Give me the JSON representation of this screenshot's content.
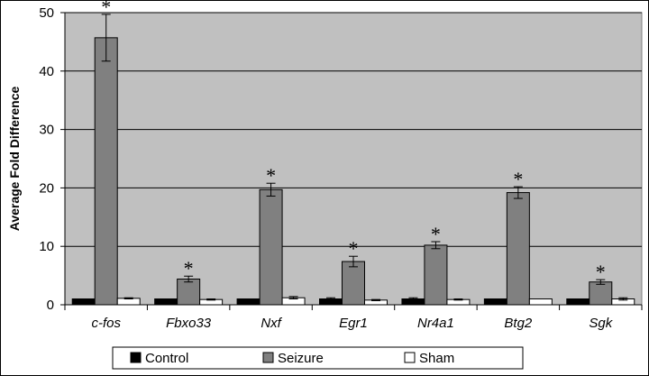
{
  "chart_data": {
    "type": "bar",
    "title": "",
    "xlabel": "",
    "ylabel": "Average Fold Difference",
    "ylim": [
      0,
      50
    ],
    "yticks": [
      0,
      10,
      20,
      30,
      40,
      50
    ],
    "grid": true,
    "categories": [
      "c-fos",
      "Fbxo33",
      "Nxf",
      "Egr1",
      "Nr4a1",
      "Btg2",
      "Sgk"
    ],
    "series": [
      {
        "name": "Control",
        "color": "#000000",
        "values": [
          1.0,
          1.0,
          1.0,
          1.0,
          1.0,
          1.0,
          1.0
        ],
        "errors": [
          0,
          0,
          0,
          0.2,
          0.2,
          0,
          0
        ]
      },
      {
        "name": "Seizure",
        "color": "#808080",
        "values": [
          45.7,
          4.4,
          19.7,
          7.4,
          10.2,
          19.2,
          3.9
        ],
        "errors": [
          4.0,
          0.5,
          1.1,
          0.9,
          0.6,
          1.0,
          0.4
        ]
      },
      {
        "name": "Sham",
        "color": "#ffffff",
        "values": [
          1.1,
          0.9,
          1.2,
          0.8,
          0.9,
          1.0,
          1.0
        ],
        "errors": [
          0.1,
          0.1,
          0.2,
          0.1,
          0.1,
          0,
          0.2
        ]
      }
    ],
    "significance_marker": "*",
    "significant": [
      true,
      true,
      true,
      true,
      true,
      true,
      true
    ],
    "legend_position": "bottom"
  }
}
